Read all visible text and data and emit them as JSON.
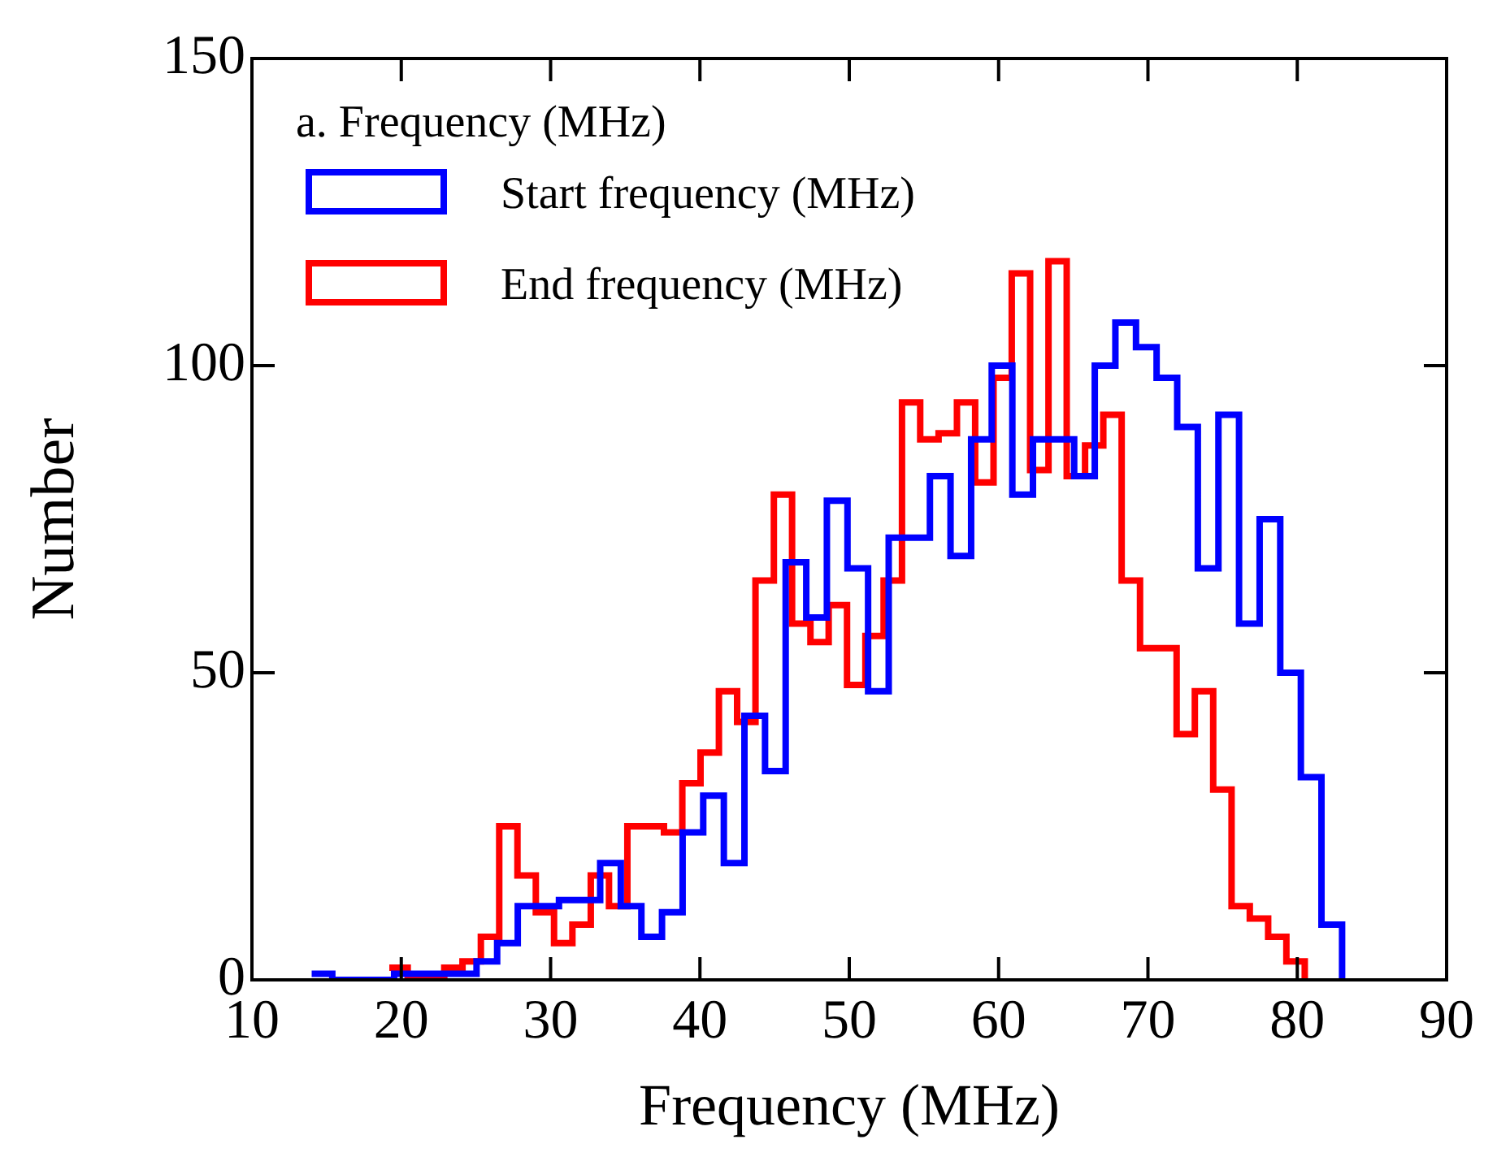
{
  "chart_data": {
    "type": "step",
    "title": "a. Frequency (MHz)",
    "xlabel": "Frequency (MHz)",
    "ylabel": "Number",
    "xlim": [
      10,
      90
    ],
    "xticks": [
      10,
      20,
      30,
      40,
      50,
      60,
      70,
      80,
      90
    ],
    "ylim": [
      0,
      150
    ],
    "yticks": [
      0,
      50,
      100,
      150
    ],
    "legend": "top left",
    "series": [
      {
        "name": "Start frequency (MHz)",
        "color": "#0000ff",
        "x": [
          14.0,
          15.38,
          16.76,
          18.14,
          19.52,
          20.9,
          22.28,
          23.66,
          25.04,
          26.42,
          27.8,
          29.18,
          30.56,
          31.94,
          33.32,
          34.7,
          36.08,
          37.46,
          38.84,
          40.22,
          41.6,
          42.98,
          44.36,
          45.74,
          47.12,
          48.5,
          49.88,
          51.26,
          52.64,
          54.02,
          55.4,
          56.78,
          58.16,
          59.54,
          60.92,
          62.3,
          63.68,
          65.06,
          66.44,
          67.82,
          69.2,
          70.58,
          71.96,
          73.34,
          74.72,
          76.1,
          77.48,
          78.86,
          80.24,
          81.62,
          83.0
        ],
        "values": [
          1,
          0,
          0,
          0,
          1,
          1,
          1,
          1,
          3,
          6,
          12,
          12,
          13,
          13,
          19,
          12,
          7,
          11,
          24,
          30,
          19,
          43,
          34,
          68,
          59,
          78,
          67,
          47,
          72,
          72,
          82,
          69,
          88,
          100,
          79,
          88,
          88,
          82,
          100,
          107,
          103,
          98,
          90,
          67,
          92,
          58,
          75,
          50,
          33,
          9,
          0
        ]
      },
      {
        "name": "End frequency (MHz)",
        "color": "#ff0000",
        "x": [
          19.2,
          20.43,
          21.65,
          22.88,
          24.1,
          25.33,
          26.56,
          27.78,
          29.01,
          30.23,
          31.46,
          32.69,
          33.91,
          35.14,
          36.36,
          37.59,
          38.82,
          40.04,
          41.27,
          42.49,
          43.72,
          44.95,
          46.17,
          47.4,
          48.62,
          49.85,
          51.08,
          52.3,
          53.53,
          54.75,
          55.98,
          57.21,
          58.43,
          59.66,
          60.88,
          62.11,
          63.34,
          64.56,
          65.79,
          67.01,
          68.24,
          69.47,
          70.69,
          71.92,
          73.14,
          74.37,
          75.6,
          76.82,
          78.05,
          79.27,
          80.5
        ],
        "values": [
          2,
          0,
          0,
          2,
          3,
          7,
          25,
          17,
          11,
          6,
          9,
          17,
          12,
          25,
          25,
          24,
          32,
          37,
          47,
          42,
          65,
          79,
          58,
          55,
          61,
          48,
          56,
          65,
          94,
          88,
          89,
          94,
          81,
          98,
          115,
          83,
          117,
          82,
          87,
          92,
          65,
          54,
          54,
          40,
          47,
          31,
          12,
          10,
          7,
          3,
          0
        ]
      }
    ]
  }
}
